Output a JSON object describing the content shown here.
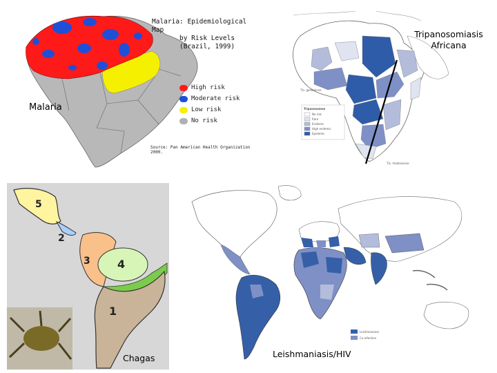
{
  "malaria": {
    "label": "Malaria",
    "title_lines": [
      "Malaria: Epidemiological Map",
      "by Risk Levels",
      "(Brazil, 1999)"
    ],
    "legend": [
      {
        "text": "High risk",
        "color": "#ff1a1a"
      },
      {
        "text": "Moderate risk",
        "color": "#1f4fd8"
      },
      {
        "text": "Low risk",
        "color": "#f4f000"
      },
      {
        "text": "No risk",
        "color": "#b0b0b0"
      }
    ],
    "source": "Source: Pan American Health Organization 2000."
  },
  "tripanosomiasis": {
    "label_lines": [
      "Tripanosomiasis",
      "Africana"
    ],
    "key_title": "Tripanosomes",
    "key_items": [
      {
        "text": "No risk",
        "color": "#ffffff"
      },
      {
        "text": "Rare",
        "color": "#dfe4f0"
      },
      {
        "text": "Endemic",
        "color": "#b3bddb"
      },
      {
        "text": "High endemic",
        "color": "#7f90c6"
      },
      {
        "text": "Epidemic",
        "color": "#2f5ca8"
      }
    ],
    "tag_top": "T.b. gambiense",
    "tag_bottom": "T.b. rhodesiense"
  },
  "chagas": {
    "label": "Chagas",
    "zones": [
      "5",
      "2",
      "3",
      "4",
      "1"
    ]
  },
  "leishmaniasis": {
    "label": "Leishmaniasis/HIV",
    "key_items": [
      {
        "text": "Leishmaniasis",
        "color": "#3560a8"
      },
      {
        "text": "Co-infection",
        "color": "#7f90c6"
      }
    ]
  }
}
